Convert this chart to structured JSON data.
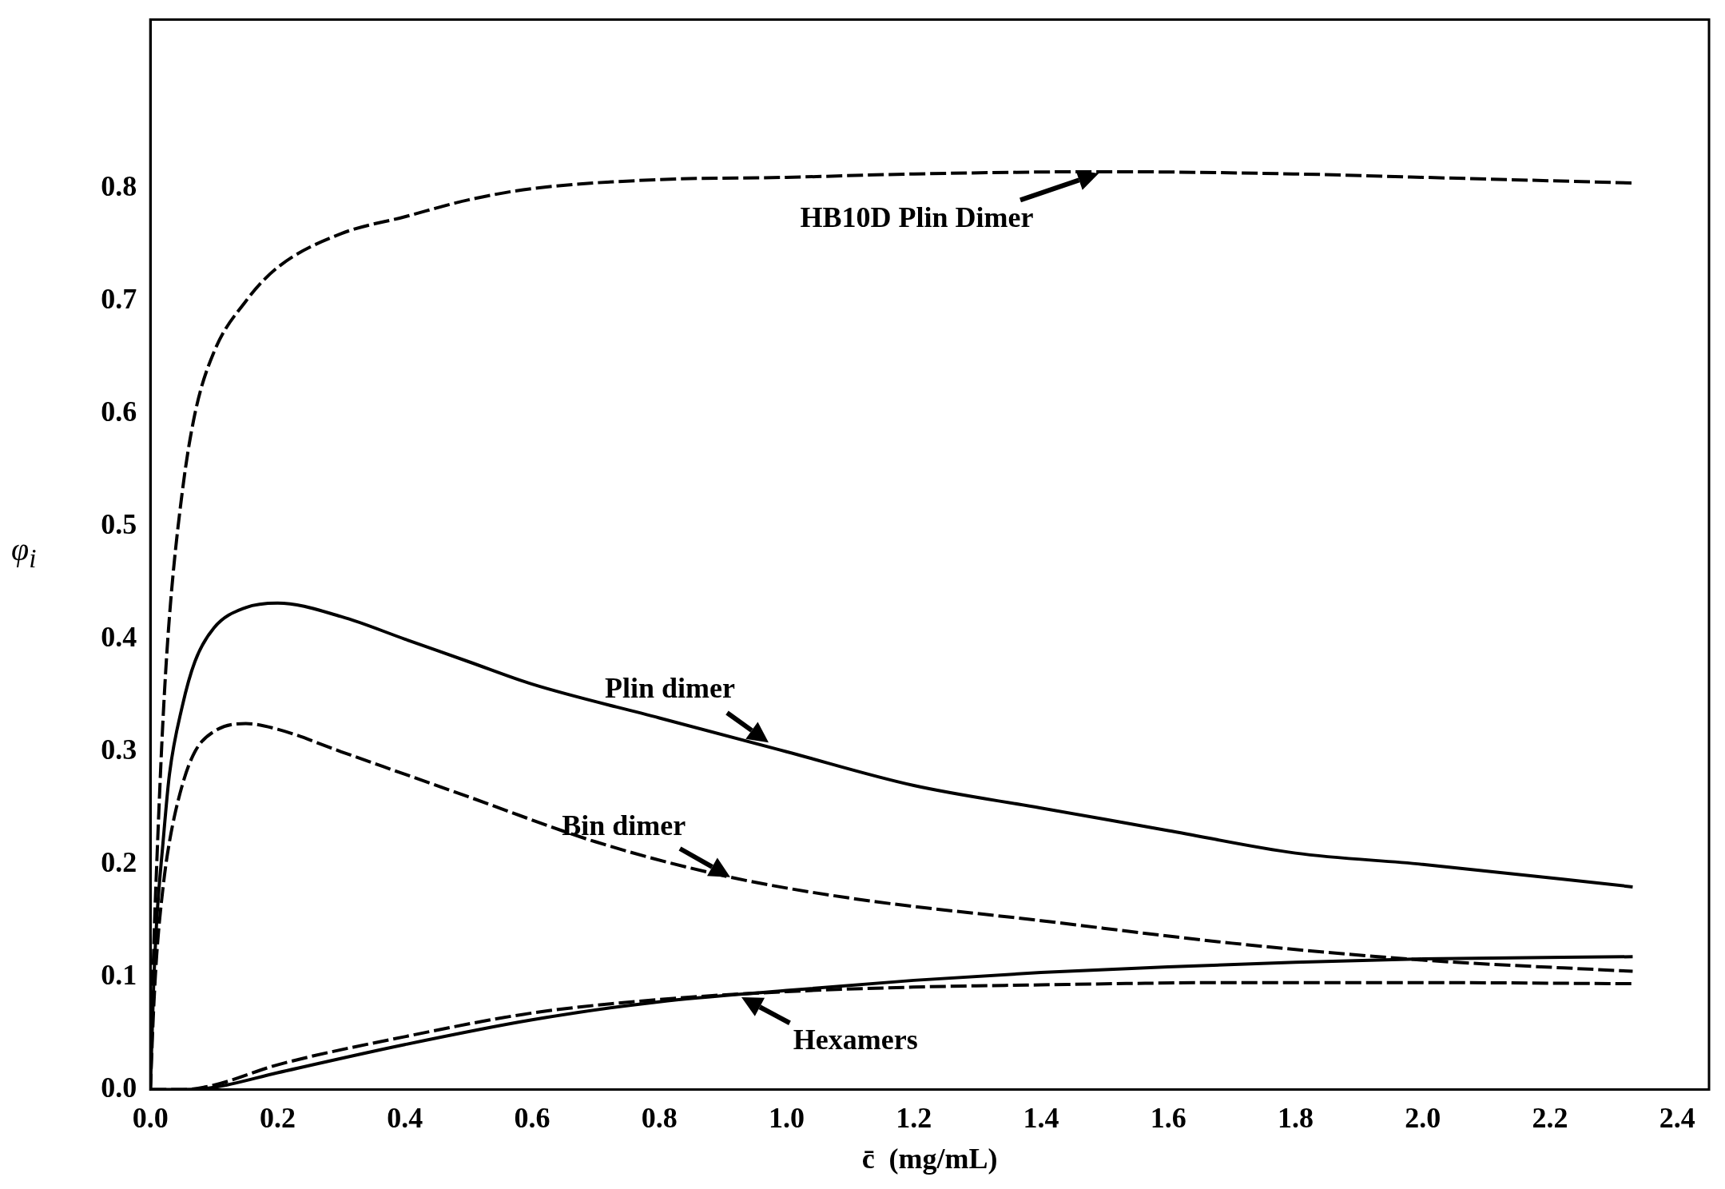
{
  "chart_data": {
    "type": "line",
    "xlabel": "c̄  (mg/mL)",
    "ylabel": "φ$_{i}$",
    "xlim": [
      0,
      2.45
    ],
    "ylim": [
      0,
      0.95
    ],
    "xticks": [
      {
        "value": 0,
        "label": "0.0"
      },
      {
        "value": 0.2,
        "label": "0.2"
      },
      {
        "value": 0.4,
        "label": "0.4"
      },
      {
        "value": 0.6,
        "label": "0.6"
      },
      {
        "value": 0.8,
        "label": "0.8"
      },
      {
        "value": 1,
        "label": "1.0"
      },
      {
        "value": 1.2,
        "label": "1.2"
      },
      {
        "value": 1.4,
        "label": "1.4"
      },
      {
        "value": 1.6,
        "label": "1.6"
      },
      {
        "value": 1.8,
        "label": "1.8"
      },
      {
        "value": 2,
        "label": "2.0"
      },
      {
        "value": 2.2,
        "label": "2.2"
      },
      {
        "value": 2.4,
        "label": "2.4"
      }
    ],
    "yticks": [
      {
        "value": 0,
        "label": "0.0"
      },
      {
        "value": 0.1,
        "label": "0.1"
      },
      {
        "value": 0.2,
        "label": "0.2"
      },
      {
        "value": 0.3,
        "label": "0.3"
      },
      {
        "value": 0.4,
        "label": "0.4"
      },
      {
        "value": 0.5,
        "label": "0.5"
      },
      {
        "value": 0.6,
        "label": "0.6"
      },
      {
        "value": 0.7,
        "label": "0.7"
      },
      {
        "value": 0.8,
        "label": "0.8"
      }
    ],
    "grid": false,
    "legend": false,
    "marker": "none",
    "series": [
      {
        "color": "#000000",
        "line_style": "dashed",
        "x": [
          0,
          0.005,
          0.01,
          0.02,
          0.03,
          0.05,
          0.07,
          0.1,
          0.15,
          0.2,
          0.3,
          0.4,
          0.5,
          0.6,
          0.8,
          1.0,
          1.2,
          1.5,
          1.8,
          2.0,
          2.33
        ],
        "values": [
          0,
          0.12,
          0.2,
          0.33,
          0.42,
          0.53,
          0.6,
          0.655,
          0.7,
          0.73,
          0.76,
          0.775,
          0.79,
          0.8,
          0.808,
          0.81,
          0.813,
          0.815,
          0.813,
          0.81,
          0.805
        ]
      },
      {
        "color": "#000000",
        "line_style": "solid",
        "x": [
          0,
          0.005,
          0.01,
          0.02,
          0.03,
          0.05,
          0.07,
          0.1,
          0.15,
          0.2,
          0.3,
          0.4,
          0.5,
          0.6,
          0.8,
          1.0,
          1.2,
          1.4,
          1.6,
          1.8,
          2.0,
          2.33
        ],
        "values": [
          0,
          0.09,
          0.15,
          0.22,
          0.28,
          0.34,
          0.38,
          0.41,
          0.428,
          0.432,
          0.42,
          0.4,
          0.38,
          0.36,
          0.33,
          0.3,
          0.27,
          0.25,
          0.23,
          0.21,
          0.2,
          0.18
        ]
      },
      {
        "color": "#000000",
        "line_style": "dashed",
        "x": [
          0,
          0.005,
          0.01,
          0.02,
          0.03,
          0.05,
          0.07,
          0.1,
          0.15,
          0.2,
          0.3,
          0.5,
          0.7,
          0.9,
          1.1,
          1.4,
          1.7,
          2.0,
          2.33
        ],
        "values": [
          0,
          0.07,
          0.12,
          0.18,
          0.22,
          0.27,
          0.3,
          0.318,
          0.325,
          0.32,
          0.3,
          0.26,
          0.22,
          0.19,
          0.17,
          0.15,
          0.13,
          0.115,
          0.105
        ]
      },
      {
        "color": "#000000",
        "line_style": "solid",
        "x": [
          0,
          0.05,
          0.1,
          0.2,
          0.4,
          0.6,
          0.8,
          1.0,
          1.2,
          1.4,
          1.6,
          1.8,
          2.0,
          2.33
        ],
        "values": [
          0,
          0,
          0.002,
          0.015,
          0.04,
          0.062,
          0.078,
          0.088,
          0.097,
          0.104,
          0.109,
          0.113,
          0.116,
          0.118
        ]
      },
      {
        "color": "#000000",
        "line_style": "dashed",
        "x": [
          0,
          0.05,
          0.1,
          0.2,
          0.4,
          0.6,
          0.8,
          1.0,
          1.2,
          1.4,
          1.7,
          2.0,
          2.33
        ],
        "values": [
          0,
          0,
          0.004,
          0.022,
          0.047,
          0.068,
          0.08,
          0.087,
          0.091,
          0.093,
          0.095,
          0.095,
          0.094
        ]
      }
    ],
    "annotations": [
      {
        "text": "HB10D Plin Dimer",
        "x": 1.5,
        "y": 0.815
      },
      {
        "text": "Plin dimer",
        "x": 0.98,
        "y": 0.305
      },
      {
        "text": "Bin dimer",
        "x": 0.92,
        "y": 0.186
      },
      {
        "text": "Hexamers",
        "x": 0.92,
        "y": 0.085
      }
    ]
  }
}
